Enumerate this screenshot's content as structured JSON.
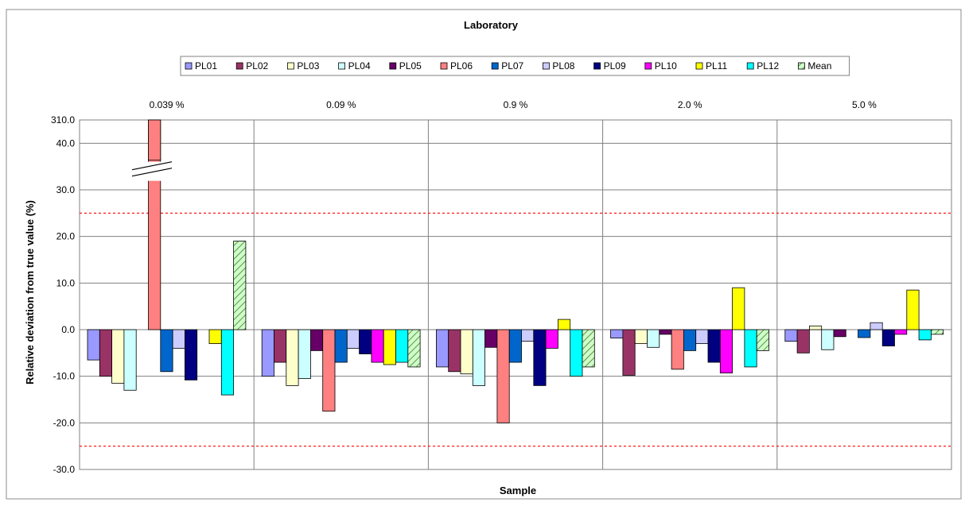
{
  "chart_data": {
    "type": "bar",
    "title": "Laboratory",
    "xlabel": "Sample",
    "ylabel": "Relative deviation from true value (%)",
    "categories": [
      "0.039 %",
      "0.09 %",
      "0.9 %",
      "2.0 %",
      "5.0 %"
    ],
    "ylim": [
      -30,
      45
    ],
    "yticks": [
      -30,
      -20,
      -10,
      0,
      10,
      20,
      30,
      40
    ],
    "ytick_labels": [
      "-30.0",
      "-20.0",
      "-10.0",
      "0.0",
      "10.0",
      "20.0",
      "30.0",
      "40.0"
    ],
    "axis_break": {
      "top_label": "310.0",
      "note": "axis broken between 40.0 and 310.0"
    },
    "reference_lines": [
      25,
      -25
    ],
    "legend_position": "top-center",
    "grid": true,
    "series": [
      {
        "name": "PL01",
        "color": "#9999ff",
        "values": [
          -6.5,
          -10.0,
          -8.0,
          -1.8,
          -2.5
        ]
      },
      {
        "name": "PL02",
        "color": "#993366",
        "values": [
          -10.0,
          -7.0,
          -9.0,
          -9.8,
          -5.0
        ]
      },
      {
        "name": "PL03",
        "color": "#ffffcc",
        "values": [
          -11.5,
          -12.0,
          -9.5,
          -3.0,
          0.8
        ]
      },
      {
        "name": "PL04",
        "color": "#ccffff",
        "values": [
          -13.0,
          -10.5,
          -12.0,
          -3.8,
          -4.3
        ]
      },
      {
        "name": "PL05",
        "color": "#660066",
        "values": [
          0.0,
          -4.5,
          -3.8,
          -1.0,
          -1.5
        ]
      },
      {
        "name": "PL06",
        "color": "#ff8080",
        "values": [
          310.0,
          -17.5,
          -20.0,
          -8.5,
          0.0
        ]
      },
      {
        "name": "PL07",
        "color": "#0066cc",
        "values": [
          -9.0,
          -7.0,
          -7.0,
          -4.5,
          -1.7
        ]
      },
      {
        "name": "PL08",
        "color": "#ccccff",
        "values": [
          -4.0,
          -4.0,
          -2.5,
          -3.0,
          1.5
        ]
      },
      {
        "name": "PL09",
        "color": "#000080",
        "values": [
          -10.8,
          -5.2,
          -12.0,
          -7.0,
          -3.5
        ]
      },
      {
        "name": "PL10",
        "color": "#ff00ff",
        "values": [
          0.0,
          -7.0,
          -4.0,
          -9.3,
          -1.0
        ]
      },
      {
        "name": "PL11",
        "color": "#ffff00",
        "values": [
          -3.0,
          -7.5,
          2.2,
          9.0,
          8.5
        ]
      },
      {
        "name": "PL12",
        "color": "#00ffff",
        "values": [
          -14.0,
          -7.0,
          -10.0,
          -8.0,
          -2.2
        ]
      },
      {
        "name": "Mean",
        "color": "#ccffcc",
        "hatched": true,
        "values": [
          19.0,
          -8.0,
          -8.0,
          -4.5,
          -1.0
        ]
      }
    ]
  }
}
